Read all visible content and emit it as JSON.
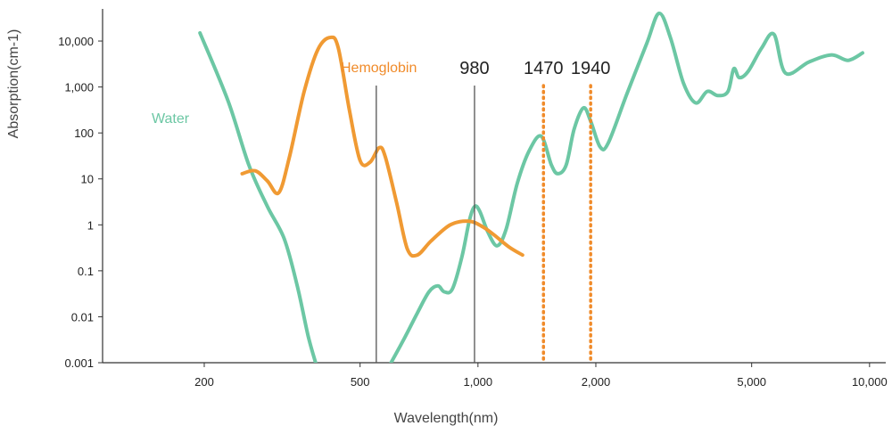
{
  "chart_data": {
    "type": "line",
    "xlabel": "Wavelength(nm)",
    "ylabel": "Absorption(cm-1)",
    "x_scale": "log",
    "y_scale": "log",
    "xlim": [
      110,
      11000
    ],
    "ylim": [
      0.001,
      50000
    ],
    "x_ticks": [
      {
        "value": 200,
        "label": "200"
      },
      {
        "value": 500,
        "label": "500"
      },
      {
        "value": 1000,
        "label": "1,000"
      },
      {
        "value": 2000,
        "label": "2,000"
      },
      {
        "value": 5000,
        "label": "5,000"
      },
      {
        "value": 10000,
        "label": "10,000"
      }
    ],
    "y_ticks": [
      {
        "value": 0.001,
        "label": "0.001"
      },
      {
        "value": 0.01,
        "label": "0.01"
      },
      {
        "value": 0.1,
        "label": "0.1"
      },
      {
        "value": 1,
        "label": "1"
      },
      {
        "value": 10,
        "label": "10"
      },
      {
        "value": 100,
        "label": "100"
      },
      {
        "value": 1000,
        "label": "1,000"
      },
      {
        "value": 10000,
        "label": "10,000"
      }
    ],
    "grid": false,
    "legend": "none",
    "series": [
      {
        "name": "Water",
        "color": "#6cc7a4",
        "points": [
          [
            195,
            15000
          ],
          [
            230,
            500
          ],
          [
            260,
            20
          ],
          [
            290,
            2.5
          ],
          [
            320,
            0.5
          ],
          [
            345,
            0.05
          ],
          [
            368,
            0.004
          ],
          [
            385,
            0.001
          ],
          [
            600,
            0.001
          ],
          [
            650,
            0.0035
          ],
          [
            700,
            0.012
          ],
          [
            750,
            0.035
          ],
          [
            790,
            0.047
          ],
          [
            820,
            0.035
          ],
          [
            860,
            0.04
          ],
          [
            910,
            0.2
          ],
          [
            950,
            1.2
          ],
          [
            980,
            2.5
          ],
          [
            1010,
            2.0
          ],
          [
            1060,
            0.7
          ],
          [
            1120,
            0.35
          ],
          [
            1180,
            0.8
          ],
          [
            1260,
            8
          ],
          [
            1350,
            40
          ],
          [
            1450,
            85
          ],
          [
            1540,
            20
          ],
          [
            1600,
            13
          ],
          [
            1680,
            20
          ],
          [
            1760,
            120
          ],
          [
            1860,
            350
          ],
          [
            1940,
            180
          ],
          [
            2050,
            50
          ],
          [
            2150,
            60
          ],
          [
            2400,
            700
          ],
          [
            2700,
            9000
          ],
          [
            2900,
            40000
          ],
          [
            3100,
            12000
          ],
          [
            3350,
            1200
          ],
          [
            3600,
            450
          ],
          [
            3850,
            800
          ],
          [
            4100,
            650
          ],
          [
            4350,
            800
          ],
          [
            4500,
            2500
          ],
          [
            4650,
            1600
          ],
          [
            4900,
            2200
          ],
          [
            5300,
            7000
          ],
          [
            5700,
            14000
          ],
          [
            6100,
            2000
          ],
          [
            7000,
            3500
          ],
          [
            8000,
            5000
          ],
          [
            8800,
            3800
          ],
          [
            9600,
            5500
          ]
        ]
      },
      {
        "name": "Hemoglobin",
        "color": "#f09a33",
        "points": [
          [
            250,
            13
          ],
          [
            270,
            15
          ],
          [
            290,
            9
          ],
          [
            310,
            5
          ],
          [
            330,
            30
          ],
          [
            360,
            800
          ],
          [
            390,
            6500
          ],
          [
            420,
            12000
          ],
          [
            440,
            7000
          ],
          [
            470,
            300
          ],
          [
            500,
            25
          ],
          [
            530,
            23
          ],
          [
            560,
            48
          ],
          [
            580,
            30
          ],
          [
            620,
            3
          ],
          [
            660,
            0.3
          ],
          [
            700,
            0.22
          ],
          [
            760,
            0.45
          ],
          [
            850,
            1.0
          ],
          [
            950,
            1.2
          ],
          [
            1030,
            0.9
          ],
          [
            1100,
            0.6
          ],
          [
            1200,
            0.33
          ],
          [
            1300,
            0.22
          ]
        ]
      }
    ],
    "vertical_lines": [
      {
        "x": 550,
        "label": "",
        "color": "#555555",
        "style": "solid"
      },
      {
        "x": 980,
        "label": "980",
        "color": "#555555",
        "style": "solid"
      },
      {
        "x": 1470,
        "label": "1470",
        "color": "#f08b2a",
        "style": "dotted"
      },
      {
        "x": 1940,
        "label": "1940",
        "color": "#f08b2a",
        "style": "dotted"
      }
    ],
    "annotations": [
      {
        "text": "Water",
        "series": "Water",
        "color": "#6cc7a4"
      },
      {
        "text": "Hemoglobin",
        "series": "Hemoglobin",
        "color": "#f08b2a"
      }
    ]
  }
}
